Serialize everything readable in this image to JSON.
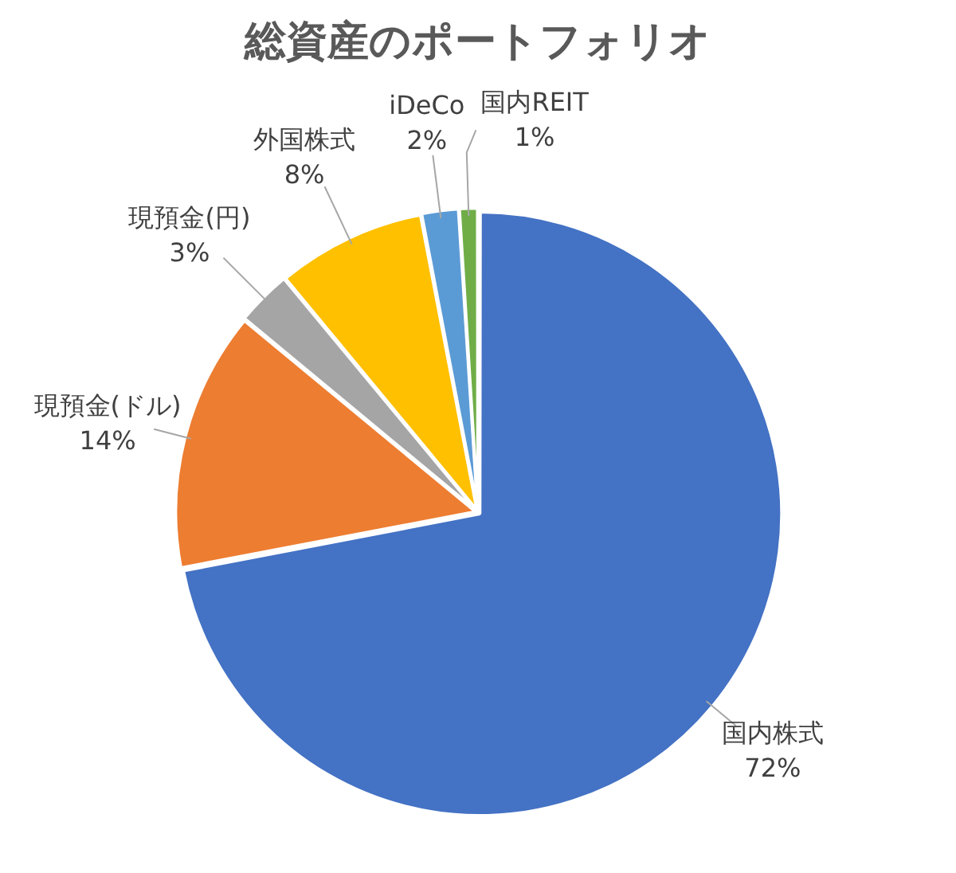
{
  "chart_data": {
    "type": "pie",
    "title": "総資産のポートフォリオ",
    "categories": [
      "国内株式",
      "現預金(ドル)",
      "現預金(円)",
      "外国株式",
      "iDeCo",
      "国内REIT"
    ],
    "values": [
      72,
      14,
      3,
      8,
      2,
      1
    ],
    "colors": [
      "#4472c4",
      "#ed7d31",
      "#a5a5a5",
      "#ffc000",
      "#5b9bd5",
      "#70ad47"
    ],
    "value_labels": [
      "72%",
      "14%",
      "3%",
      "8%",
      "2%",
      "1%"
    ],
    "legend": false
  }
}
